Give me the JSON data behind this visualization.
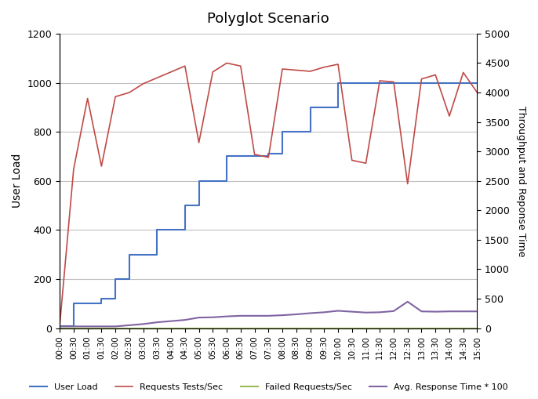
{
  "title": "Polyglot Scenario",
  "ylabel_left": "User Load",
  "ylabel_right": "Throughput and Reponse Time",
  "x_labels": [
    "00:00",
    "00:30",
    "01:00",
    "01:30",
    "02:00",
    "02:30",
    "03:00",
    "03:30",
    "04:00",
    "04:30",
    "05:00",
    "05:30",
    "06:00",
    "06:30",
    "07:00",
    "07:30",
    "08:00",
    "08:30",
    "09:00",
    "09:30",
    "10:00",
    "10:30",
    "11:00",
    "11:30",
    "12:00",
    "12:30",
    "13:00",
    "13:30",
    "14:00",
    "14:30",
    "15:00"
  ],
  "ylim_left": [
    0,
    1200
  ],
  "ylim_right": [
    0,
    5000
  ],
  "user_load": [
    10,
    100,
    100,
    120,
    200,
    300,
    300,
    400,
    400,
    500,
    600,
    600,
    700,
    700,
    700,
    710,
    800,
    800,
    900,
    900,
    1000,
    1000,
    1000,
    1000,
    1000,
    1000,
    1000,
    1000,
    1000,
    1000,
    1000
  ],
  "requests_per_sec": [
    50,
    2700,
    3900,
    2750,
    3930,
    4000,
    4150,
    4250,
    4350,
    4450,
    3150,
    4350,
    4500,
    4450,
    2950,
    2900,
    4400,
    4380,
    4360,
    4430,
    4480,
    2850,
    2800,
    4200,
    4180,
    2450,
    4230,
    4300,
    3600,
    4340,
    4000
  ],
  "failed_requests": [
    0,
    0,
    0,
    0,
    0,
    0,
    0,
    0,
    0,
    0,
    0,
    0,
    0,
    0,
    0,
    0,
    0,
    0,
    0,
    0,
    0,
    0,
    0,
    0,
    0,
    0,
    0,
    0,
    0,
    0,
    0
  ],
  "avg_response_time": [
    30,
    30,
    30,
    30,
    30,
    50,
    70,
    100,
    120,
    140,
    180,
    185,
    200,
    210,
    210,
    210,
    220,
    235,
    255,
    270,
    295,
    280,
    265,
    270,
    290,
    450,
    285,
    280,
    285,
    285,
    285
  ],
  "user_load_color": "#4472C4",
  "requests_per_sec_color": "#BE4B48",
  "failed_requests_color": "#9BBB59",
  "avg_response_time_color": "#8064A2",
  "background_color": "#FFFFFF",
  "grid_color": "#C0C0C0"
}
